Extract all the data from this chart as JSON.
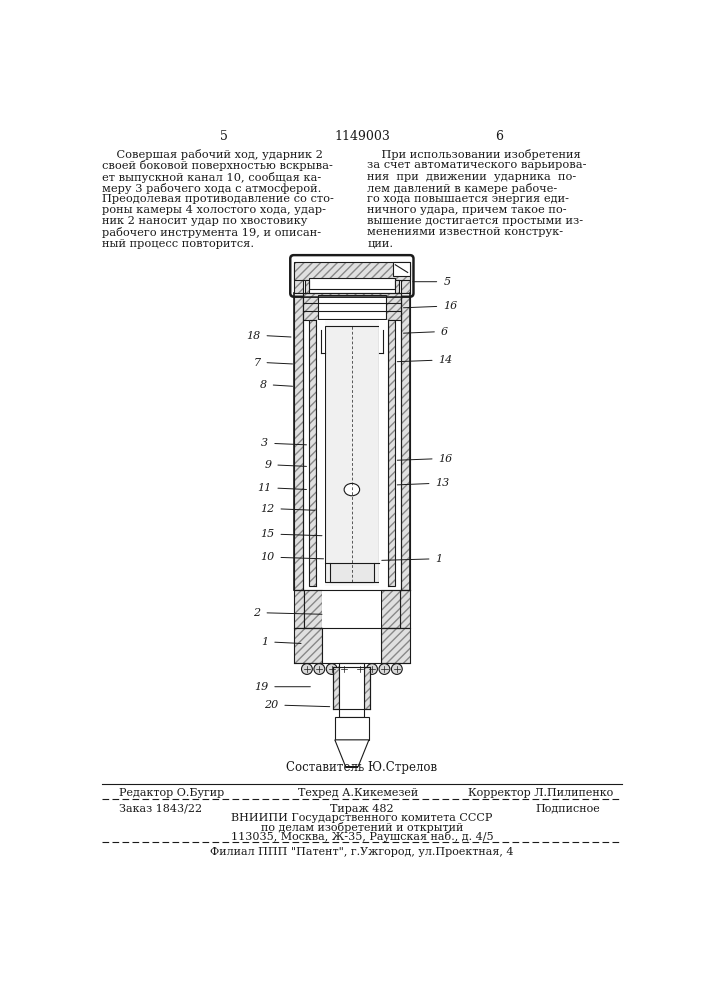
{
  "page_number_left": "5",
  "page_number_center": "1149003",
  "page_number_right": "6",
  "col_left_text": "    Совершая рабочий ход, ударник 2\nсвоей боковой поверхностью вскрыва-\nет выпускной канал 10, сообщая ка-\nмеру 3 рабочего хода с атмосферой.\nПреодолевая противодавление со сто-\nроны камеры 4 холостого хода, удар-\nник 2 наносит удар по хвостовику\nрабочего инструмента 19, и описан-\nный процесс повторится.",
  "col_right_text": "    При использовании изобретения\nза счет автоматического варьирова-\nния  при  движении  ударника  по-\nлем давлений в камере рабоче-\nго хода повышается энергия еди-\nничного удара, причем такое по-\nвышение достигается простыми из-\nменениями известной конструк-\nции.",
  "footer_sestavitel": "Составитель Ю.Стрелов",
  "footer_redaktor": "Редактор О.Бугир",
  "footer_tehred": "Техред А.Кикемезей",
  "footer_korrektor": "Корректор Л.Пилипенко",
  "footer_zakaz": "Заказ 1843/22",
  "footer_tirazh": "Тираж 482",
  "footer_podpisnoe": "Подписное",
  "footer_vniiipi": "ВНИИПИ Государственного комитета СССР",
  "footer_po_delam": "по делам изобретений и открытий",
  "footer_address": "113035, Москва, Ж-35, Раушская наб., д. 4/5",
  "footer_filial": "Филиал ППП \"Патент\", г.Ужгород, ул.Проектная, 4",
  "bg_color": "#ffffff",
  "text_color": "#1a1a1a"
}
